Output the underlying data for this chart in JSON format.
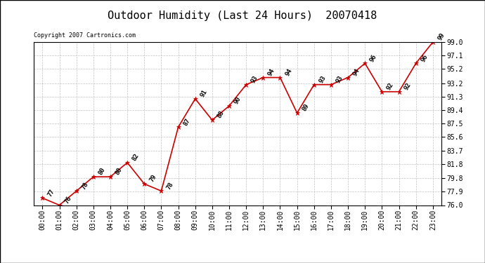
{
  "title": "Outdoor Humidity (Last 24 Hours)  20070418",
  "copyright": "Copyright 2007 Cartronics.com",
  "x_indices": [
    0,
    1,
    2,
    3,
    4,
    5,
    6,
    7,
    8,
    9,
    10,
    11,
    12,
    13,
    14,
    15,
    16,
    17,
    18,
    19,
    20,
    21,
    22,
    23
  ],
  "values": [
    77,
    76,
    78,
    80,
    80,
    82,
    79,
    78,
    87,
    91,
    88,
    90,
    93,
    94,
    94,
    89,
    93,
    93,
    94,
    96,
    92,
    92,
    96,
    99
  ],
  "xlabels": [
    "00:00",
    "01:00",
    "02:00",
    "03:00",
    "04:00",
    "05:00",
    "06:00",
    "07:00",
    "08:00",
    "09:00",
    "10:00",
    "11:00",
    "12:00",
    "13:00",
    "14:00",
    "15:00",
    "16:00",
    "17:00",
    "18:00",
    "19:00",
    "20:00",
    "21:00",
    "22:00",
    "23:00"
  ],
  "ylim": [
    76.0,
    99.0
  ],
  "yticks": [
    76.0,
    77.9,
    79.8,
    81.8,
    83.7,
    85.6,
    87.5,
    89.4,
    91.3,
    93.2,
    95.2,
    97.1,
    99.0
  ],
  "line_color": "#cc0000",
  "marker_color": "#cc0000",
  "bg_color": "#ffffff",
  "grid_color": "#bbbbbb",
  "title_fontsize": 11,
  "label_fontsize": 7,
  "annot_fontsize": 6.5,
  "copyright_fontsize": 6
}
